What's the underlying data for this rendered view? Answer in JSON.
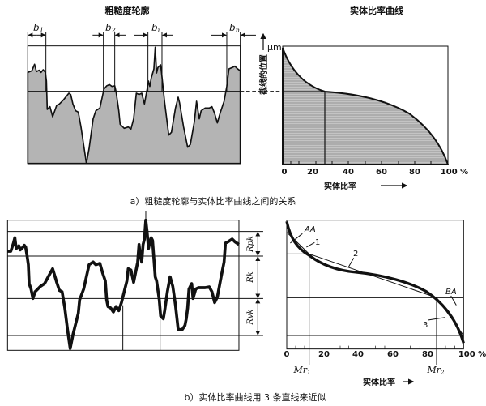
{
  "top_left": {
    "title": "粗糙度轮廓",
    "markers": [
      "b",
      "b",
      "b",
      "b"
    ],
    "marker_subs": [
      "1",
      "2",
      "i",
      "n"
    ]
  },
  "top_right": {
    "title": "实体比率曲线",
    "y_label": "截线的位置",
    "y_unit": "μm",
    "x_label": "实体比率",
    "x_ticks": [
      "0",
      "20",
      "40",
      "60",
      "80",
      "100 %"
    ]
  },
  "caption_a": "a）粗糙度轮廓与实体比率曲线之间的关系",
  "bottom_left": {
    "bands": [
      "Rpk",
      "Rk",
      "Rvk"
    ]
  },
  "bottom_right": {
    "labels": {
      "aa": "AA",
      "ba": "BA",
      "l1": "1",
      "l2": "2",
      "l3": "3"
    },
    "mr1": "Mr",
    "mr1_sub": "1",
    "mr2": "Mr",
    "mr2_sub": "2",
    "x_label": "实体比率",
    "x_ticks": [
      "0",
      "20",
      "40",
      "60",
      "80",
      "100 %"
    ]
  },
  "caption_b": "b）实体比率曲线用 3 条直线来近似",
  "colors": {
    "ink": "#111111",
    "hatch_fill": "#b8b8b8"
  }
}
